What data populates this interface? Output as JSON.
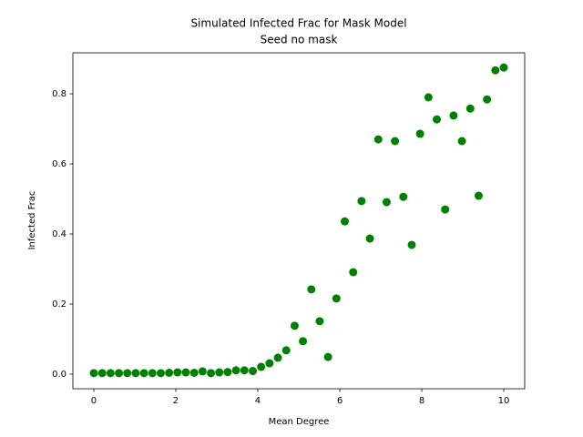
{
  "chart_data": {
    "type": "scatter",
    "title": "Simulated Infected Frac for Mask Model",
    "subtitle": "Seed no mask",
    "x_label": "Mean Degree",
    "y_label": "Infected Frac",
    "color": "#008000",
    "x": [
      0,
      0.204,
      0.408,
      0.612,
      0.816,
      1.02,
      1.224,
      1.429,
      1.633,
      1.837,
      2.041,
      2.245,
      2.449,
      2.653,
      2.857,
      3.061,
      3.265,
      3.469,
      3.673,
      3.878,
      4.082,
      4.286,
      4.49,
      4.694,
      4.898,
      5.102,
      5.306,
      5.51,
      5.714,
      5.918,
      6.122,
      6.327,
      6.531,
      6.735,
      6.939,
      7.143,
      7.347,
      7.551,
      7.755,
      7.959,
      8.163,
      8.367,
      8.571,
      8.776,
      8.98,
      9.184,
      9.388,
      9.592,
      9.796,
      10
    ],
    "values": [
      0.003,
      0.003,
      0.003,
      0.003,
      0.003,
      0.003,
      0.003,
      0.003,
      0.003,
      0.004,
      0.005,
      0.005,
      0.004,
      0.008,
      0.003,
      0.005,
      0.006,
      0.011,
      0.011,
      0.009,
      0.021,
      0.031,
      0.047,
      0.068,
      0.138,
      0.094,
      0.242,
      0.151,
      0.049,
      0.216,
      0.436,
      0.291,
      0.494,
      0.387,
      0.67,
      0.491,
      0.665,
      0.506,
      0.369,
      0.686,
      0.79,
      0.727,
      0.47,
      0.738,
      0.665,
      0.758,
      0.509,
      0.784,
      0.867,
      0.875
    ],
    "xlim": [
      -0.511,
      10.511
    ],
    "ylim": [
      -0.0416,
      0.917
    ],
    "xticks": [
      0,
      2,
      4,
      6,
      8,
      10
    ],
    "yticks": [
      {
        "value": 0,
        "label": "0.0"
      },
      {
        "value": 0.2,
        "label": "0.2"
      },
      {
        "value": 0.4,
        "label": "0.4"
      },
      {
        "value": 0.6,
        "label": "0.6"
      },
      {
        "value": 0.8,
        "label": "0.8"
      }
    ]
  }
}
